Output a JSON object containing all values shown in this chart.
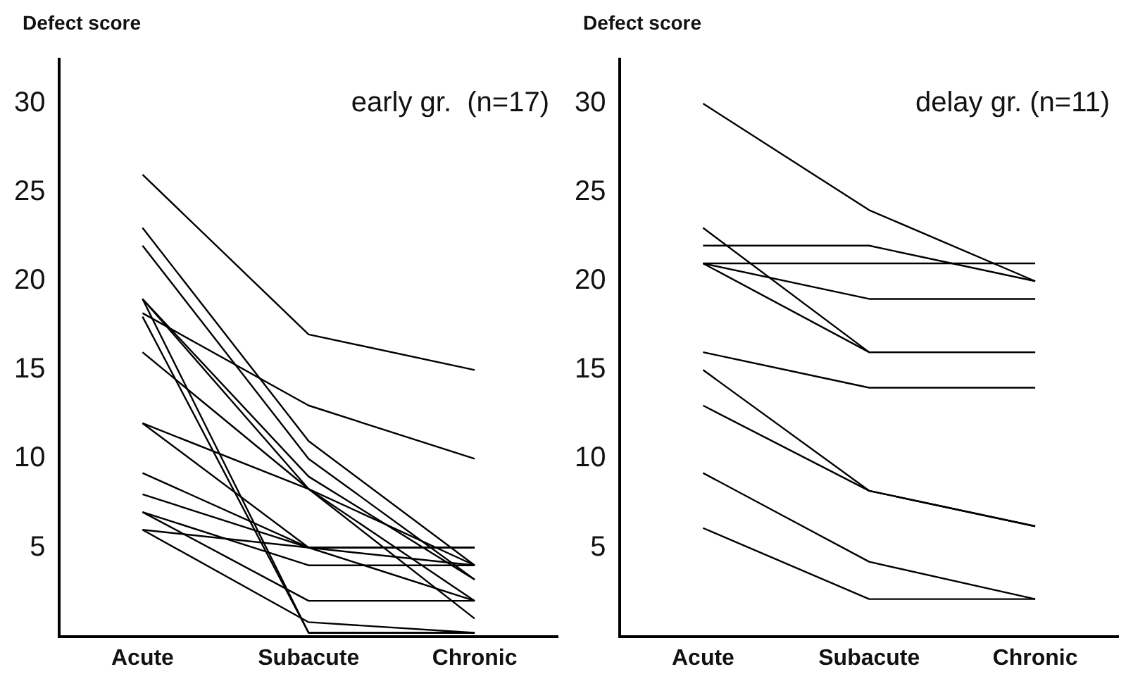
{
  "chart_data": [
    {
      "type": "line",
      "title": "early gr.  (n=17)",
      "ylabel": "Defect score",
      "categories": [
        "Acute",
        "Subacute",
        "Chronic"
      ],
      "ylim": [
        0,
        32.5
      ],
      "yticks": [
        {
          "value": 5,
          "label": "5"
        },
        10,
        15,
        20,
        25,
        30
      ],
      "grid": false,
      "legend": false,
      "marker": "none",
      "line_style": "solid",
      "series": [
        {
          "color": "#000000",
          "values": [
            26,
            17,
            15
          ]
        },
        {
          "color": "#000000",
          "values": [
            18.2,
            13,
            10
          ]
        },
        {
          "color": "#000000",
          "values": [
            23,
            11,
            4
          ]
        },
        {
          "color": "#000000",
          "values": [
            22,
            10,
            3.2
          ]
        },
        {
          "color": "#000000",
          "values": [
            19,
            9,
            3.2
          ]
        },
        {
          "color": "#000000",
          "values": [
            19,
            8.3,
            4
          ]
        },
        {
          "color": "#000000",
          "values": [
            16,
            8.3,
            2
          ]
        },
        {
          "color": "#000000",
          "values": [
            12,
            8.3,
            1
          ]
        },
        {
          "color": "#000000",
          "values": [
            12,
            5,
            5
          ]
        },
        {
          "color": "#000000",
          "values": [
            9.2,
            5,
            4
          ]
        },
        {
          "color": "#000000",
          "values": [
            8,
            5,
            5
          ]
        },
        {
          "color": "#000000",
          "values": [
            7,
            4,
            4
          ]
        },
        {
          "color": "#000000",
          "values": [
            7,
            2,
            2
          ]
        },
        {
          "color": "#000000",
          "values": [
            6,
            5,
            2
          ]
        },
        {
          "color": "#000000",
          "values": [
            6,
            0.8,
            0.2
          ]
        },
        {
          "color": "#000000",
          "values": [
            19,
            0.2,
            0.2
          ]
        },
        {
          "color": "#000000",
          "values": [
            18,
            0.2,
            0.2
          ]
        }
      ]
    },
    {
      "type": "line",
      "title": "delay gr. (n=11)",
      "ylabel": "Defect score",
      "categories": [
        "Acute",
        "Subacute",
        "Chronic"
      ],
      "ylim": [
        0,
        32.5
      ],
      "yticks": [
        5,
        10,
        15,
        20,
        25,
        30
      ],
      "grid": false,
      "legend": false,
      "marker": "none",
      "line_style": "solid",
      "series": [
        {
          "color": "#000000",
          "values": [
            30,
            24,
            20
          ]
        },
        {
          "color": "#000000",
          "values": [
            23,
            16,
            16
          ]
        },
        {
          "color": "#000000",
          "values": [
            22,
            22,
            20
          ]
        },
        {
          "color": "#000000",
          "values": [
            21,
            21,
            21
          ]
        },
        {
          "color": "#000000",
          "values": [
            21,
            19,
            19
          ]
        },
        {
          "color": "#000000",
          "values": [
            21,
            16,
            16
          ]
        },
        {
          "color": "#000000",
          "values": [
            16,
            14,
            14
          ]
        },
        {
          "color": "#000000",
          "values": [
            15,
            8.2,
            6.2
          ]
        },
        {
          "color": "#000000",
          "values": [
            13,
            8.2,
            6.2
          ]
        },
        {
          "color": "#000000",
          "values": [
            9.2,
            4.2,
            2.1
          ]
        },
        {
          "color": "#000000",
          "values": [
            6.1,
            2.1,
            2.1
          ]
        }
      ]
    }
  ]
}
